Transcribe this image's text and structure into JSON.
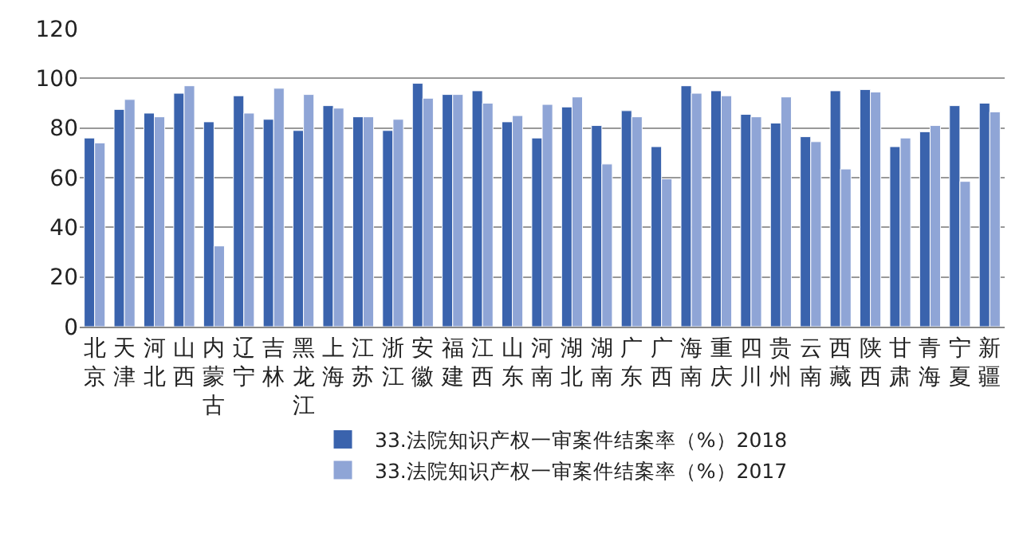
{
  "chart_data": {
    "type": "bar",
    "categories": [
      "北京",
      "天津",
      "河北",
      "山西",
      "内蒙古",
      "辽宁",
      "吉林",
      "黑龙江",
      "上海",
      "江苏",
      "浙江",
      "安徽",
      "福建",
      "江西",
      "山东",
      "河南",
      "湖北",
      "湖南",
      "广东",
      "广西",
      "海南",
      "重庆",
      "四川",
      "贵州",
      "云南",
      "西藏",
      "陕西",
      "甘肃",
      "青海",
      "宁夏",
      "新疆"
    ],
    "series": [
      {
        "name": "33.法院知识产权一审案件结案率（%）2018",
        "color": "#3a63ad",
        "values": [
          76,
          87.5,
          86,
          94,
          82.5,
          93,
          83.5,
          79,
          89,
          84.5,
          79,
          98,
          93.5,
          95,
          82.5,
          76,
          88.5,
          81,
          87,
          72.5,
          97,
          95,
          85.5,
          82,
          76.5,
          95,
          95.5,
          72.5,
          78.5,
          89,
          90
        ]
      },
      {
        "name": "33.法院知识产权一审案件结案率（%）2017",
        "color": "#8fa5d6",
        "values": [
          74,
          91.5,
          84.5,
          97,
          32.5,
          86,
          96,
          93.5,
          88,
          84.5,
          83.5,
          92,
          93.5,
          90,
          85,
          89.5,
          92.5,
          65.5,
          84.5,
          59.5,
          94,
          93,
          84.5,
          92.5,
          74.5,
          63.5,
          94.5,
          76,
          81,
          58.5,
          86.5
        ]
      }
    ],
    "ylim": [
      0,
      120
    ],
    "yticks": [
      0,
      20,
      40,
      60,
      80,
      100,
      120
    ],
    "grid": "y",
    "legend": "bottom"
  }
}
